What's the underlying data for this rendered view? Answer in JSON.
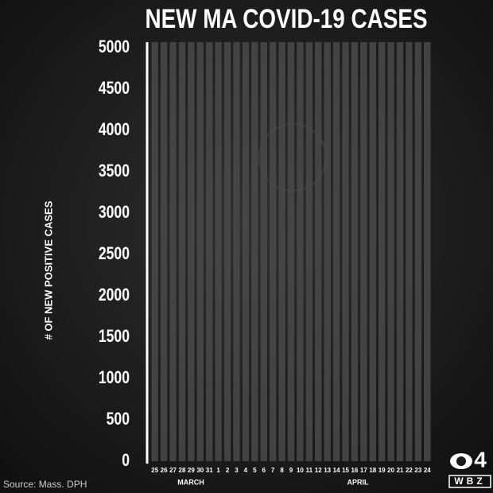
{
  "chart_data": {
    "type": "bar",
    "title": "NEW MA COVID-19 CASES",
    "ylabel": "# OF NEW POSITIVE CASES",
    "categories": [
      "25",
      "26",
      "27",
      "28",
      "29",
      "30",
      "31",
      "1",
      "2",
      "3",
      "4",
      "5",
      "6",
      "7",
      "8",
      "9",
      "10",
      "11",
      "12",
      "13",
      "14",
      "15",
      "16",
      "17",
      "18",
      "19",
      "20",
      "21",
      "22",
      "23",
      "24"
    ],
    "month_labels": [
      "MARCH",
      "APRIL"
    ],
    "ylim": [
      0,
      5000
    ],
    "yticks": [
      0,
      500,
      1000,
      1500,
      2000,
      2500,
      3000,
      3500,
      4000,
      4500,
      5000
    ],
    "source": "Source: Mass. DPH",
    "logo": {
      "number": "4",
      "call_sign": "WBZ"
    }
  }
}
